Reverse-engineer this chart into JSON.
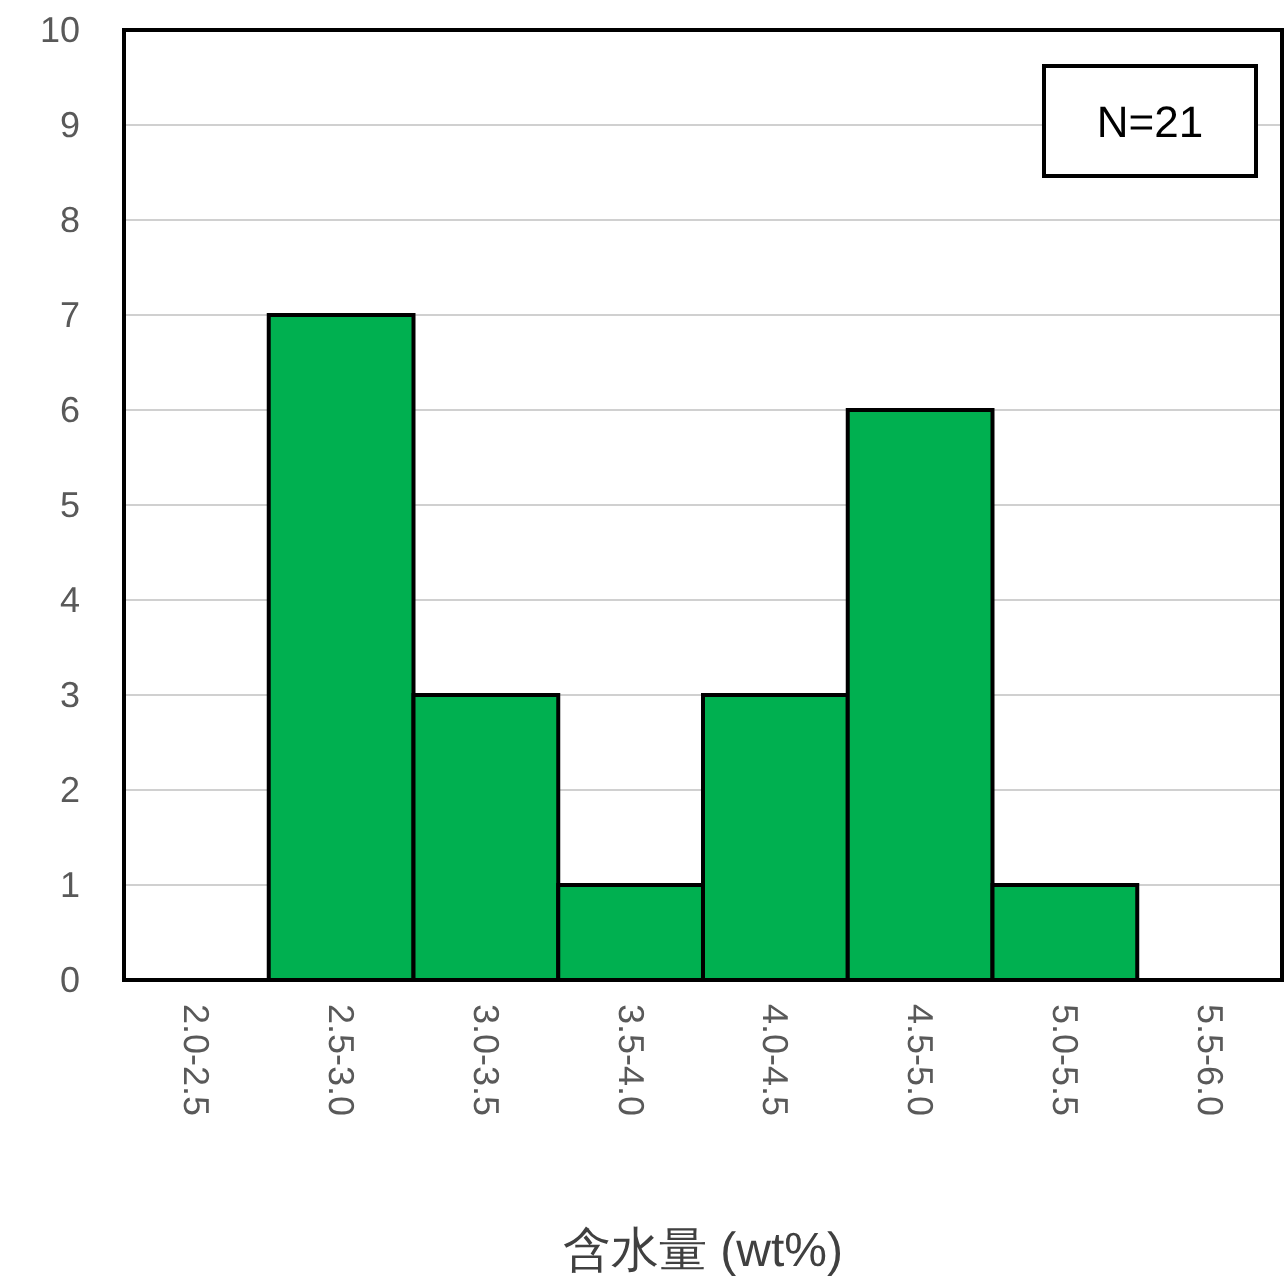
{
  "chart_data": {
    "type": "bar",
    "xlabel": "含水量 (wt%)",
    "categories": [
      "2.0-2.5",
      "2.5-3.0",
      "3.0-3.5",
      "3.5-4.0",
      "4.0-4.5",
      "4.5-5.0",
      "5.0-5.5",
      "5.5-6.0"
    ],
    "values": [
      0,
      7,
      3,
      1,
      3,
      6,
      1,
      0
    ],
    "color": "#00b050",
    "ylim": [
      0,
      10
    ],
    "yticks": [
      0,
      1,
      2,
      3,
      4,
      5,
      6,
      7,
      8,
      9,
      10
    ],
    "grid": "y",
    "annotations": [
      "N=21"
    ]
  }
}
